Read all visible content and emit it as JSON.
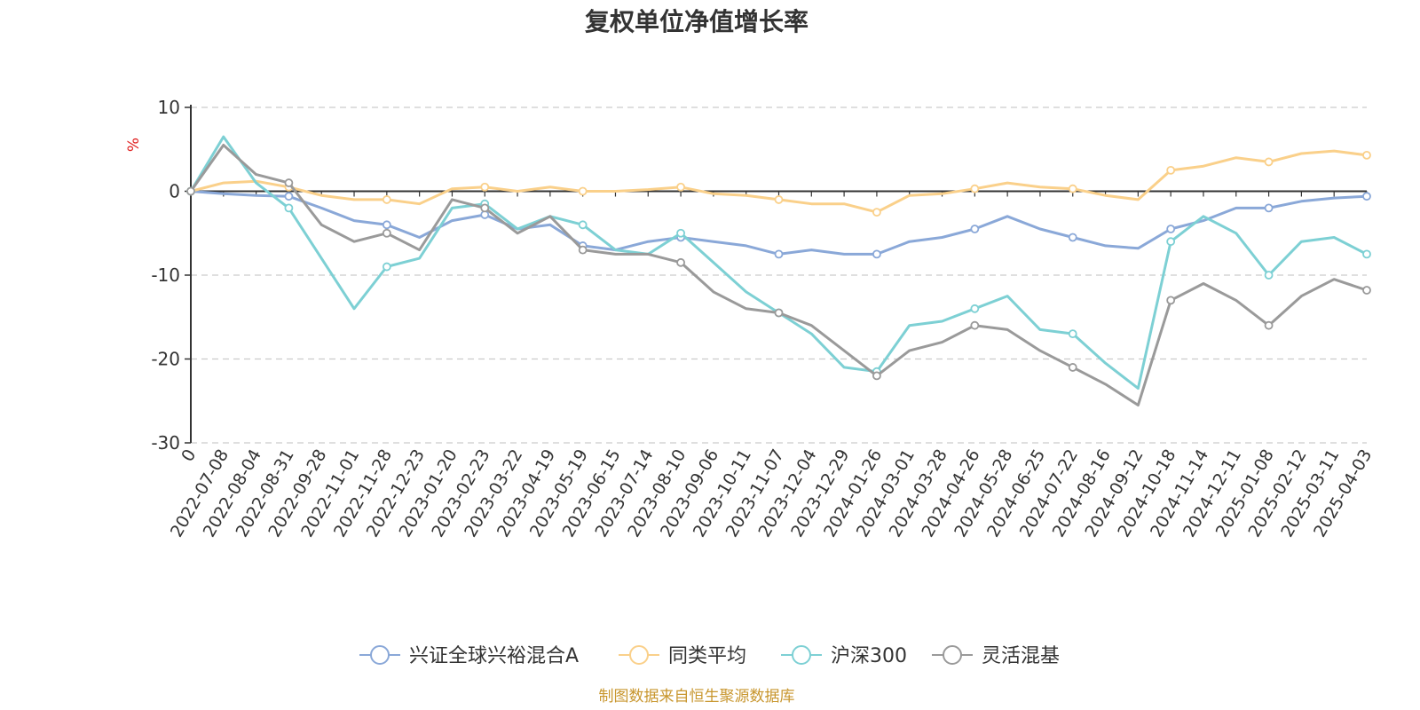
{
  "chart_data": {
    "type": "line",
    "title": "复权单位净值增长率",
    "ylabel": "%",
    "ylim": [
      -30,
      10
    ],
    "yticks": [
      10,
      0,
      -10,
      -20,
      -30
    ],
    "ytick_labels": [
      "10",
      "0",
      "-10",
      "-20",
      "-30"
    ],
    "grid": true,
    "legend_position": "bottom",
    "source": "制图数据来自恒生聚源数据库",
    "x_labels": [
      "0",
      "2022-07-08",
      "2022-08-04",
      "2022-08-31",
      "2022-09-28",
      "2022-11-01",
      "2022-11-28",
      "2022-12-23",
      "2023-01-20",
      "2023-02-23",
      "2023-03-22",
      "2023-04-19",
      "2023-05-19",
      "2023-06-15",
      "2023-07-14",
      "2023-08-10",
      "2023-09-06",
      "2023-10-11",
      "2023-11-07",
      "2023-12-04",
      "2023-12-29",
      "2024-01-26",
      "2024-03-01",
      "2024-03-28",
      "2024-04-26",
      "2024-05-28",
      "2024-06-25",
      "2024-07-22",
      "2024-08-16",
      "2024-09-12",
      "2024-10-18",
      "2024-11-14",
      "2024-12-11",
      "2025-01-08",
      "2025-02-12",
      "2025-03-11",
      "2025-04-03"
    ],
    "series": [
      {
        "name": "兴证全球兴裕混合A",
        "color": "#8aa8d8",
        "values": [
          0,
          -0.3,
          -0.5,
          -0.6,
          -2.0,
          -3.5,
          -4.0,
          -5.5,
          -3.5,
          -2.8,
          -4.5,
          -4.0,
          -6.5,
          -7.0,
          -6.0,
          -5.5,
          -6.0,
          -6.5,
          -7.5,
          -7.0,
          -7.5,
          -7.5,
          -6.0,
          -5.5,
          -4.5,
          -3.0,
          -4.5,
          -5.5,
          -6.5,
          -6.8,
          -4.5,
          -3.5,
          -2.0,
          -2.0,
          -1.2,
          -0.8,
          -0.6
        ]
      },
      {
        "name": "同类平均",
        "color": "#fad08a",
        "values": [
          0,
          1.0,
          1.2,
          0.5,
          -0.5,
          -1.0,
          -1.0,
          -1.5,
          0.3,
          0.5,
          0,
          0.5,
          0,
          0,
          0.2,
          0.5,
          -0.3,
          -0.5,
          -1.0,
          -1.5,
          -1.5,
          -2.5,
          -0.5,
          -0.3,
          0.3,
          1.0,
          0.5,
          0.3,
          -0.5,
          -1.0,
          2.5,
          3.0,
          4.0,
          3.5,
          4.5,
          4.8,
          4.3
        ]
      },
      {
        "name": "沪深300",
        "color": "#7dd0d4",
        "values": [
          0,
          6.5,
          1.0,
          -2.0,
          -8.0,
          -14.0,
          -9.0,
          -8.0,
          -2.0,
          -1.5,
          -4.5,
          -3.0,
          -4.0,
          -7.0,
          -7.5,
          -5.0,
          -8.5,
          -12.0,
          -14.5,
          -17.0,
          -21.0,
          -21.5,
          -16.0,
          -15.5,
          -14.0,
          -12.5,
          -16.5,
          -17.0,
          -20.5,
          -23.5,
          -6.0,
          -3.0,
          -5.0,
          -10.0,
          -6.0,
          -5.5,
          -7.5
        ]
      },
      {
        "name": "灵活混基",
        "color": "#9a9a9a",
        "values": [
          0,
          5.5,
          2.0,
          1.0,
          -4.0,
          -6.0,
          -5.0,
          -7.0,
          -1.0,
          -2.0,
          -5.0,
          -3.0,
          -7.0,
          -7.5,
          -7.5,
          -8.5,
          -12.0,
          -14.0,
          -14.5,
          -16.0,
          -19.0,
          -22.0,
          -19.0,
          -18.0,
          -16.0,
          -16.5,
          -19.0,
          -21.0,
          -23.0,
          -25.5,
          -13.0,
          -11.0,
          -13.0,
          -16.0,
          -12.5,
          -10.5,
          -11.8
        ]
      }
    ]
  }
}
